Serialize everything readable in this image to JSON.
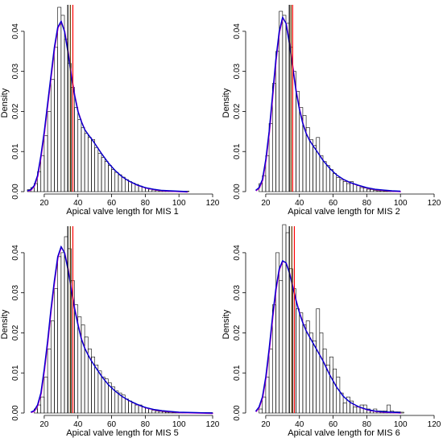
{
  "chart_data": [
    {
      "type": "histogram",
      "xlabel": "Apical valve length for MIS 1",
      "ylabel": "Density",
      "xlim": [
        10,
        120
      ],
      "ylim": [
        0,
        0.045
      ],
      "x_ticks": [
        20,
        40,
        60,
        80,
        100,
        120
      ],
      "y_ticks": [
        0.0,
        0.01,
        0.02,
        0.03,
        0.04
      ],
      "y_tick_labels": [
        "0.00",
        "0.01",
        "0.02",
        "0.03",
        "0.04"
      ],
      "bin_width": 2,
      "bin_start": 10,
      "hist_density": [
        0.0005,
        0.001,
        0.002,
        0.005,
        0.009,
        0.014,
        0.02,
        0.028,
        0.036,
        0.046,
        0.044,
        0.038,
        0.032,
        0.026,
        0.021,
        0.018,
        0.016,
        0.0145,
        0.0135,
        0.013,
        0.011,
        0.0095,
        0.0085,
        0.0075,
        0.0065,
        0.0055,
        0.0048,
        0.0042,
        0.0036,
        0.003,
        0.0025,
        0.0021,
        0.0018,
        0.0014,
        0.0011,
        0.0008,
        0.0006,
        0.0004,
        0.0003,
        0.0002,
        0.0002,
        0.0001,
        0.0001,
        0.0001,
        0.0001,
        0.0001,
        0.0001,
        0.0001
      ],
      "density_curve": {
        "x": [
          10,
          12,
          14,
          16,
          18,
          20,
          22,
          24,
          26,
          28,
          30,
          32,
          34,
          36,
          38,
          40,
          42,
          44,
          46,
          48,
          50,
          54,
          58,
          62,
          66,
          70,
          75,
          80,
          85,
          90,
          95,
          100,
          105
        ],
        "y": [
          0.0002,
          0.0005,
          0.0015,
          0.004,
          0.009,
          0.015,
          0.022,
          0.029,
          0.036,
          0.041,
          0.0425,
          0.04,
          0.035,
          0.029,
          0.024,
          0.02,
          0.0175,
          0.0155,
          0.0143,
          0.0132,
          0.012,
          0.0095,
          0.0072,
          0.0053,
          0.0038,
          0.0027,
          0.0017,
          0.001,
          0.0006,
          0.0003,
          0.0002,
          0.0001,
          0.0
        ]
      },
      "vlines": [
        {
          "x": 34,
          "color": "#000000"
        },
        {
          "x": 35.5,
          "color": "#5a3a00"
        },
        {
          "x": 37,
          "color": "#ff0000"
        }
      ],
      "colors": {
        "curve": "#0000cc",
        "curve_shadow": "#cc00cc",
        "bars": "#000000"
      }
    },
    {
      "type": "histogram",
      "xlabel": "Apical valve length for MIS 2",
      "ylabel": "Density",
      "xlim": [
        10,
        120
      ],
      "ylim": [
        0,
        0.045
      ],
      "x_ticks": [
        20,
        40,
        60,
        80,
        100,
        120
      ],
      "y_ticks": [
        0.0,
        0.01,
        0.02,
        0.03,
        0.04
      ],
      "y_tick_labels": [
        "0.00",
        "0.01",
        "0.02",
        "0.03",
        "0.04"
      ],
      "bin_width": 2,
      "bin_start": 16,
      "hist_density": [
        0.002,
        0.004,
        0.009,
        0.017,
        0.027,
        0.035,
        0.045,
        0.044,
        0.042,
        0.036,
        0.03,
        0.025,
        0.021,
        0.019,
        0.016,
        0.013,
        0.0115,
        0.0135,
        0.009,
        0.0075,
        0.0065,
        0.0055,
        0.0045,
        0.0035,
        0.003,
        0.0025,
        0.002,
        0.0025,
        0.0018,
        0.0015,
        0.001,
        0.0009,
        0.0006,
        0.0005,
        0.0003,
        0.0002,
        0.0002,
        0.0001,
        0.0001,
        0.0001,
        0.0001,
        0.0001
      ],
      "density_curve": {
        "x": [
          14,
          16,
          18,
          20,
          22,
          24,
          26,
          28,
          30,
          32,
          34,
          36,
          38,
          40,
          42,
          44,
          46,
          48,
          50,
          54,
          58,
          62,
          66,
          70,
          75,
          80,
          85,
          90,
          95,
          100
        ],
        "y": [
          0.0003,
          0.001,
          0.003,
          0.008,
          0.015,
          0.024,
          0.033,
          0.04,
          0.0435,
          0.042,
          0.037,
          0.031,
          0.025,
          0.0205,
          0.017,
          0.0145,
          0.0128,
          0.0115,
          0.0103,
          0.0078,
          0.0058,
          0.0042,
          0.0031,
          0.0023,
          0.0016,
          0.001,
          0.0006,
          0.0004,
          0.0002,
          0.0001
        ]
      },
      "vlines": [
        {
          "x": 34,
          "color": "#000000"
        },
        {
          "x": 35,
          "color": "#5a3a00"
        },
        {
          "x": 36,
          "color": "#ff0000"
        }
      ],
      "colors": {
        "curve": "#0000cc",
        "curve_shadow": "#cc00cc",
        "bars": "#000000"
      }
    },
    {
      "type": "histogram",
      "xlabel": "Apical valve length for MIS 5",
      "ylabel": "Density",
      "xlim": [
        10,
        120
      ],
      "ylim": [
        0,
        0.045
      ],
      "x_ticks": [
        20,
        40,
        60,
        80,
        100,
        120
      ],
      "y_ticks": [
        0.0,
        0.01,
        0.02,
        0.03,
        0.04
      ],
      "y_tick_labels": [
        "0.00",
        "0.01",
        "0.02",
        "0.03",
        "0.04"
      ],
      "bin_width": 2,
      "bin_start": 14,
      "hist_density": [
        0.001,
        0.002,
        0.004,
        0.009,
        0.016,
        0.023,
        0.031,
        0.039,
        0.04,
        0.044,
        0.041,
        0.033,
        0.027,
        0.024,
        0.022,
        0.019,
        0.016,
        0.014,
        0.012,
        0.0105,
        0.009,
        0.0085,
        0.0075,
        0.0065,
        0.0055,
        0.005,
        0.0045,
        0.0035,
        0.003,
        0.0025,
        0.002,
        0.002,
        0.0015,
        0.0012,
        0.001,
        0.0007,
        0.0005,
        0.0004,
        0.0003,
        0.0002,
        0.0002,
        0.0001,
        0.0001,
        0.0001,
        0.0001,
        0.0001,
        0.0001,
        0.0001,
        0.0001,
        0.0001,
        0.0001,
        0.0001,
        0.0001
      ],
      "density_curve": {
        "x": [
          12,
          14,
          16,
          18,
          20,
          22,
          24,
          26,
          28,
          30,
          32,
          34,
          36,
          38,
          40,
          42,
          44,
          46,
          48,
          50,
          54,
          58,
          62,
          66,
          70,
          75,
          80,
          85,
          90,
          95,
          100,
          110,
          120
        ],
        "y": [
          0.0002,
          0.0006,
          0.002,
          0.005,
          0.011,
          0.018,
          0.026,
          0.033,
          0.039,
          0.0415,
          0.04,
          0.036,
          0.031,
          0.026,
          0.022,
          0.0185,
          0.0162,
          0.0145,
          0.013,
          0.0117,
          0.0092,
          0.0071,
          0.0055,
          0.0042,
          0.0032,
          0.0022,
          0.0014,
          0.0009,
          0.0006,
          0.0004,
          0.0002,
          0.0001,
          0.0
        ]
      },
      "vlines": [
        {
          "x": 34,
          "color": "#000000"
        },
        {
          "x": 35.5,
          "color": "#5a3a00"
        },
        {
          "x": 37,
          "color": "#ff0000"
        }
      ],
      "colors": {
        "curve": "#0000cc",
        "curve_shadow": "#cc00cc",
        "bars": "#000000"
      }
    },
    {
      "type": "histogram",
      "xlabel": "Apical valve length for MIS 6",
      "ylabel": "Density",
      "xlim": [
        10,
        120
      ],
      "ylim": [
        0,
        0.045
      ],
      "x_ticks": [
        20,
        40,
        60,
        80,
        100,
        120
      ],
      "y_ticks": [
        0.0,
        0.01,
        0.02,
        0.03,
        0.04
      ],
      "y_tick_labels": [
        "0.00",
        "0.01",
        "0.02",
        "0.03",
        "0.04"
      ],
      "bin_width": 2,
      "bin_start": 16,
      "hist_density": [
        0.001,
        0.004,
        0.009,
        0.016,
        0.027,
        0.04,
        0.033,
        0.047,
        0.045,
        0.036,
        0.031,
        0.026,
        0.025,
        0.022,
        0.023,
        0.02,
        0.018,
        0.026,
        0.02,
        0.016,
        0.012,
        0.014,
        0.011,
        0.009,
        0.005,
        0.0025,
        0.004,
        0.003,
        0.0015,
        0.0015,
        0.002,
        0.002,
        0.001,
        0.0005,
        0.001,
        0.0005,
        0.0005,
        0.0005,
        0.002,
        0.0005,
        0.0003,
        0.0003,
        0.0002
      ],
      "density_curve": {
        "x": [
          14,
          16,
          18,
          20,
          22,
          24,
          26,
          28,
          30,
          32,
          34,
          36,
          38,
          40,
          42,
          44,
          46,
          48,
          50,
          52,
          54,
          58,
          62,
          66,
          70,
          75,
          80,
          85,
          90,
          95,
          100
        ],
        "y": [
          0.0004,
          0.0015,
          0.004,
          0.009,
          0.016,
          0.024,
          0.031,
          0.036,
          0.038,
          0.0375,
          0.035,
          0.0315,
          0.028,
          0.025,
          0.0225,
          0.0205,
          0.019,
          0.0175,
          0.016,
          0.0145,
          0.013,
          0.0095,
          0.0065,
          0.0042,
          0.0027,
          0.0016,
          0.0009,
          0.0005,
          0.0003,
          0.0002,
          0.0001
        ]
      },
      "vlines": [
        {
          "x": 34,
          "color": "#000000"
        },
        {
          "x": 35.5,
          "color": "#5a3a00"
        },
        {
          "x": 37,
          "color": "#ff0000"
        }
      ],
      "colors": {
        "curve": "#0000cc",
        "curve_shadow": "#cc00cc",
        "bars": "#000000"
      }
    }
  ]
}
